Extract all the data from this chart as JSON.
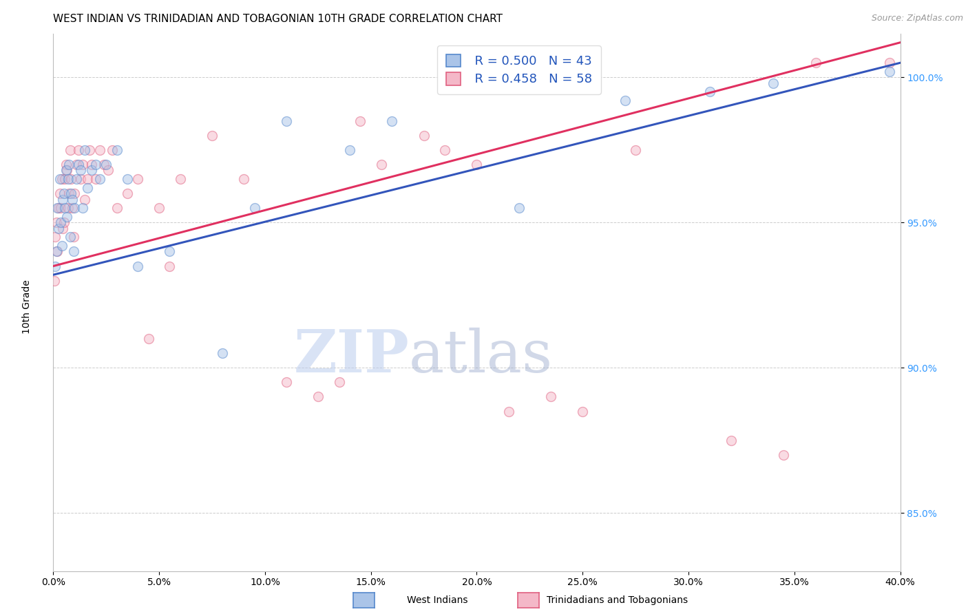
{
  "title": "WEST INDIAN VS TRINIDADIAN AND TOBAGONIAN 10TH GRADE CORRELATION CHART",
  "source": "Source: ZipAtlas.com",
  "ylabel": "10th Grade",
  "xlim": [
    0.0,
    40.0
  ],
  "ylim": [
    83.0,
    101.5
  ],
  "yticks": [
    85.0,
    90.0,
    95.0,
    100.0
  ],
  "ytick_labels": [
    "85.0%",
    "90.0%",
    "95.0%",
    "100.0%"
  ],
  "xticks": [
    0.0,
    5.0,
    10.0,
    15.0,
    20.0,
    25.0,
    30.0,
    35.0,
    40.0
  ],
  "legend_blue_r": "R = 0.500",
  "legend_blue_n": "N = 43",
  "legend_pink_r": "R = 0.458",
  "legend_pink_n": "N = 58",
  "blue_fill_color": "#aac4e8",
  "pink_fill_color": "#f4b8c8",
  "blue_edge_color": "#5588cc",
  "pink_edge_color": "#e06080",
  "blue_line_color": "#3355bb",
  "pink_line_color": "#e03060",
  "legend_label_blue": "West Indians",
  "legend_label_pink": "Trinidadians and Tobagonians",
  "watermark_zip": "ZIP",
  "watermark_atlas": "atlas",
  "background_color": "#ffffff",
  "grid_color": "#cccccc",
  "title_fontsize": 11,
  "axis_label_fontsize": 10,
  "tick_fontsize": 10,
  "dot_size": 100,
  "dot_alpha": 0.5,
  "line_width": 2.2,
  "blue_scatter_x": [
    0.1,
    0.15,
    0.2,
    0.25,
    0.3,
    0.35,
    0.4,
    0.45,
    0.5,
    0.55,
    0.6,
    0.65,
    0.7,
    0.75,
    0.8,
    0.85,
    0.9,
    0.95,
    1.0,
    1.1,
    1.2,
    1.3,
    1.4,
    1.5,
    1.6,
    1.8,
    2.0,
    2.2,
    2.5,
    3.0,
    3.5,
    4.0,
    5.5,
    8.0,
    9.5,
    11.0,
    14.0,
    16.0,
    22.0,
    27.0,
    31.0,
    34.0,
    39.5
  ],
  "blue_scatter_y": [
    93.5,
    94.0,
    95.5,
    94.8,
    96.5,
    95.0,
    94.2,
    95.8,
    96.0,
    95.5,
    96.8,
    95.2,
    96.5,
    97.0,
    94.5,
    96.0,
    95.8,
    94.0,
    95.5,
    96.5,
    97.0,
    96.8,
    95.5,
    97.5,
    96.2,
    96.8,
    97.0,
    96.5,
    97.0,
    97.5,
    96.5,
    93.5,
    94.0,
    90.5,
    95.5,
    98.5,
    97.5,
    98.5,
    95.5,
    99.2,
    99.5,
    99.8,
    100.2
  ],
  "pink_scatter_x": [
    0.05,
    0.1,
    0.15,
    0.2,
    0.25,
    0.3,
    0.35,
    0.4,
    0.45,
    0.5,
    0.55,
    0.6,
    0.65,
    0.7,
    0.75,
    0.8,
    0.85,
    0.9,
    0.95,
    1.0,
    1.1,
    1.2,
    1.3,
    1.4,
    1.5,
    1.6,
    1.7,
    1.8,
    2.0,
    2.2,
    2.4,
    2.6,
    2.8,
    3.0,
    3.5,
    4.0,
    4.5,
    5.0,
    5.5,
    6.0,
    7.5,
    9.0,
    11.0,
    12.5,
    13.5,
    14.5,
    15.5,
    17.5,
    18.5,
    20.0,
    21.5,
    23.5,
    25.0,
    27.5,
    32.0,
    34.5,
    36.0,
    39.5
  ],
  "pink_scatter_y": [
    93.0,
    94.5,
    95.0,
    94.0,
    95.5,
    96.0,
    95.5,
    96.5,
    94.8,
    95.0,
    96.5,
    97.0,
    96.8,
    95.5,
    96.0,
    97.5,
    96.5,
    95.5,
    94.5,
    96.0,
    97.0,
    97.5,
    96.5,
    97.0,
    95.8,
    96.5,
    97.5,
    97.0,
    96.5,
    97.5,
    97.0,
    96.8,
    97.5,
    95.5,
    96.0,
    96.5,
    91.0,
    95.5,
    93.5,
    96.5,
    98.0,
    96.5,
    89.5,
    89.0,
    89.5,
    98.5,
    97.0,
    98.0,
    97.5,
    97.0,
    88.5,
    89.0,
    88.5,
    97.5,
    87.5,
    87.0,
    100.5,
    100.5
  ],
  "blue_regline_x": [
    0.0,
    40.0
  ],
  "blue_regline_y": [
    93.2,
    100.5
  ],
  "pink_regline_x": [
    0.0,
    40.0
  ],
  "pink_regline_y": [
    93.5,
    101.2
  ]
}
